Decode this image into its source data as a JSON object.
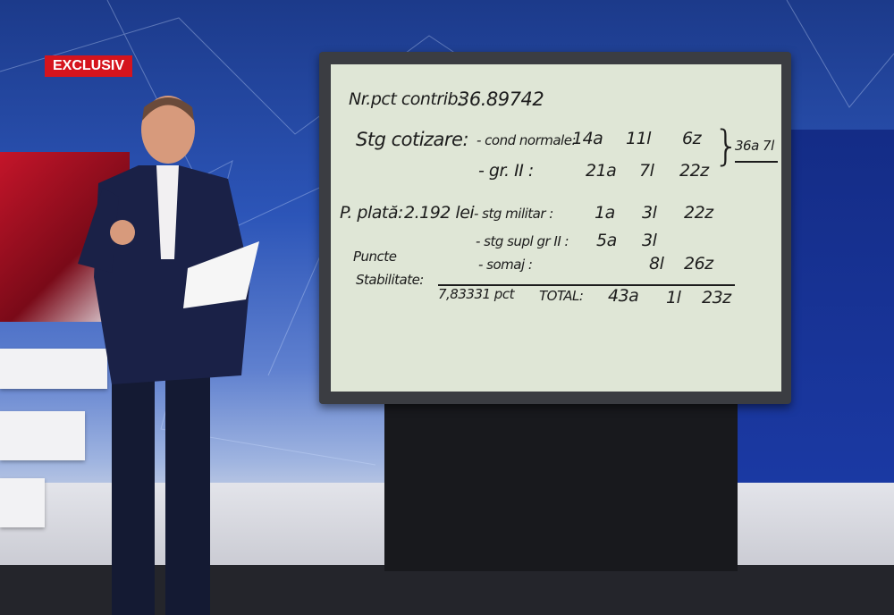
{
  "badge": {
    "label": "EXCLUSIV",
    "color": "#d5141d"
  },
  "whiteboard": {
    "line1": {
      "label": "Nr.pct contrib:",
      "value": "36.89742"
    },
    "stagiu": {
      "label": "Stg cotizare:",
      "normal": {
        "label": "- cond normale:",
        "a": "14a",
        "l": "11l",
        "z": "6z"
      },
      "gr2": {
        "label": "- gr. II :",
        "a": "21a",
        "l": "7l",
        "z": "22z"
      },
      "sum": "36a 7l"
    },
    "plata": {
      "label": "P. plată:",
      "value": "2.192 lei"
    },
    "militar": {
      "label": "- stg militar :",
      "a": "1a",
      "l": "3l",
      "z": "22z"
    },
    "supl": {
      "label": "- stg supl gr II :",
      "a": "5a",
      "l": "3l"
    },
    "somaj": {
      "label": "- somaj :",
      "l": "8l",
      "z": "26z"
    },
    "puncte": {
      "label1": "Puncte",
      "label2": "Stabilitate:",
      "value": "7,83331 pct"
    },
    "total": {
      "label": "TOTAL:",
      "a": "43a",
      "l": "1l",
      "z": "23z"
    }
  }
}
